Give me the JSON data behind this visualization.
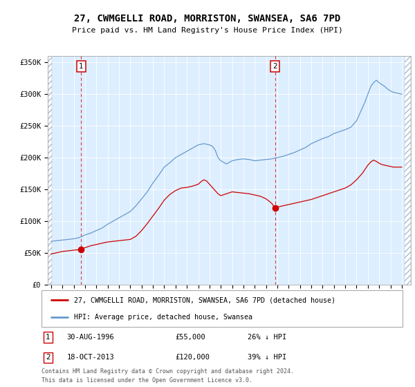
{
  "title1": "27, CWMGELLI ROAD, MORRISTON, SWANSEA, SA6 7PD",
  "title2": "Price paid vs. HM Land Registry's House Price Index (HPI)",
  "legend_label_red": "27, CWMGELLI ROAD, MORRISTON, SWANSEA, SA6 7PD (detached house)",
  "legend_label_blue": "HPI: Average price, detached house, Swansea",
  "annotation1_date": "30-AUG-1996",
  "annotation1_price": "£55,000",
  "annotation1_hpi": "26% ↓ HPI",
  "annotation2_date": "18-OCT-2013",
  "annotation2_price": "£120,000",
  "annotation2_hpi": "39% ↓ HPI",
  "footnote1": "Contains HM Land Registry data © Crown copyright and database right 2024.",
  "footnote2": "This data is licensed under the Open Government Licence v3.0.",
  "red_color": "#cc0000",
  "blue_color": "#6699cc",
  "bg_color": "#ddeeff",
  "hatch_color": "#bbccdd",
  "sale1_year": 1996.66,
  "sale1_value": 55000,
  "sale2_year": 2013.79,
  "sale2_value": 120000,
  "xmin": 1993.7,
  "xmax": 2025.8,
  "ymin": 0,
  "ymax": 360000,
  "blue_years": [
    1994,
    1994.5,
    1995,
    1995.5,
    1996,
    1996.5,
    1997,
    1997.5,
    1998,
    1998.5,
    1999,
    1999.5,
    2000,
    2000.5,
    2001,
    2001.5,
    2002,
    2002.5,
    2003,
    2003.5,
    2004,
    2004.5,
    2005,
    2005.5,
    2006,
    2006.5,
    2007,
    2007.5,
    2008,
    2008.25,
    2008.5,
    2008.75,
    2009,
    2009.5,
    2010,
    2010.5,
    2011,
    2011.5,
    2012,
    2012.5,
    2013,
    2013.5,
    2014,
    2014.5,
    2015,
    2015.5,
    2016,
    2016.5,
    2017,
    2017.5,
    2018,
    2018.5,
    2019,
    2019.5,
    2020,
    2020.5,
    2021,
    2021.25,
    2021.5,
    2021.75,
    2022,
    2022.25,
    2022.5,
    2022.75,
    2023,
    2023.25,
    2023.5,
    2023.75,
    2024,
    2024.25,
    2024.5,
    2024.75,
    2025
  ],
  "blue_vals": [
    68000,
    69000,
    70000,
    71000,
    72000,
    74000,
    78000,
    81000,
    85000,
    89000,
    95000,
    100000,
    105000,
    110000,
    115000,
    124000,
    135000,
    146000,
    160000,
    172000,
    185000,
    192000,
    200000,
    205000,
    210000,
    215000,
    220000,
    222000,
    220000,
    218000,
    212000,
    200000,
    195000,
    190000,
    195000,
    197000,
    198000,
    197000,
    195000,
    196000,
    197000,
    198000,
    200000,
    202000,
    205000,
    208000,
    212000,
    216000,
    222000,
    226000,
    230000,
    233000,
    238000,
    241000,
    244000,
    248000,
    258000,
    268000,
    278000,
    288000,
    300000,
    312000,
    318000,
    322000,
    318000,
    315000,
    312000,
    308000,
    305000,
    303000,
    302000,
    301000,
    300000
  ],
  "red_years": [
    1994,
    1994.5,
    1995,
    1995.5,
    1996,
    1996.5,
    1997,
    1997.5,
    1998,
    1998.5,
    1999,
    1999.5,
    2000,
    2000.5,
    2001,
    2001.5,
    2002,
    2002.5,
    2003,
    2003.5,
    2004,
    2004.5,
    2005,
    2005.5,
    2006,
    2006.5,
    2007,
    2007.25,
    2007.5,
    2007.75,
    2008,
    2008.25,
    2008.5,
    2008.75,
    2009,
    2009.5,
    2010,
    2010.5,
    2011,
    2011.5,
    2012,
    2012.5,
    2013,
    2013.5,
    2013.8,
    2014,
    2014.5,
    2015,
    2015.5,
    2016,
    2016.5,
    2017,
    2017.5,
    2018,
    2018.5,
    2019,
    2019.5,
    2020,
    2020.5,
    2021,
    2021.5,
    2022,
    2022.25,
    2022.5,
    2022.75,
    2023,
    2023.25,
    2023.5,
    2023.75,
    2024,
    2024.25,
    2024.5,
    2024.75,
    2025
  ],
  "red_vals": [
    48000,
    50000,
    52000,
    53000,
    54000,
    55000,
    58000,
    61000,
    63000,
    65000,
    67000,
    68000,
    69000,
    70000,
    71000,
    76000,
    85000,
    96000,
    108000,
    120000,
    133000,
    142000,
    148000,
    152000,
    153000,
    155000,
    158000,
    162000,
    165000,
    163000,
    158000,
    153000,
    148000,
    143000,
    140000,
    143000,
    146000,
    145000,
    144000,
    143000,
    141000,
    139000,
    135000,
    128000,
    120000,
    122000,
    124000,
    126000,
    128000,
    130000,
    132000,
    134000,
    137000,
    140000,
    143000,
    146000,
    149000,
    152000,
    157000,
    165000,
    175000,
    188000,
    193000,
    196000,
    194000,
    191000,
    189000,
    188000,
    187000,
    186000,
    185000,
    185000,
    185000,
    185000
  ]
}
